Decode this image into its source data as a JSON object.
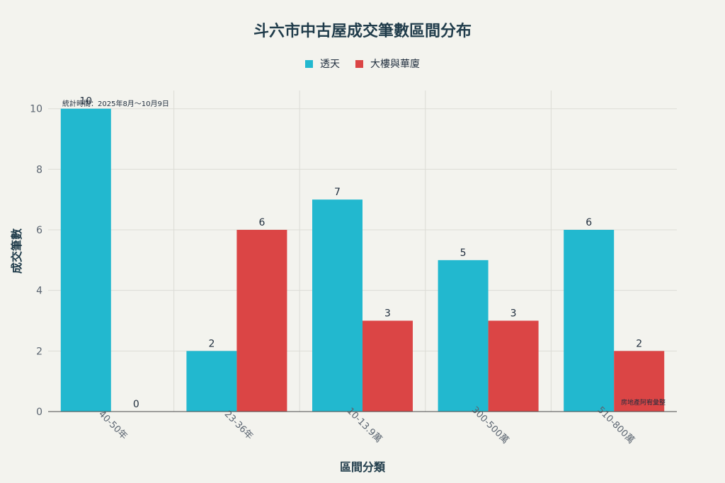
{
  "chart_data": {
    "type": "bar",
    "title": "斗六市中古屋成交筆數區間分布",
    "xlabel": "區間分類",
    "ylabel": "成交筆數",
    "categories": [
      "40-50年",
      "23-36年",
      "10-13.9萬",
      "300-500萬",
      "510-800萬"
    ],
    "series": [
      {
        "name": "透天",
        "color": "#22b8cf",
        "values": [
          10,
          2,
          7,
          5,
          6
        ]
      },
      {
        "name": "大樓與華廈",
        "color": "#db4545",
        "values": [
          0,
          6,
          3,
          3,
          2
        ]
      }
    ],
    "ylim": [
      0,
      10.6
    ],
    "yticks": [
      0,
      2,
      4,
      6,
      8,
      10
    ],
    "grid": true,
    "legend": "top-center",
    "annotations": {
      "note": "統計時間：2025年8月～10月9日",
      "source": "房地產阿宥彙整"
    }
  }
}
